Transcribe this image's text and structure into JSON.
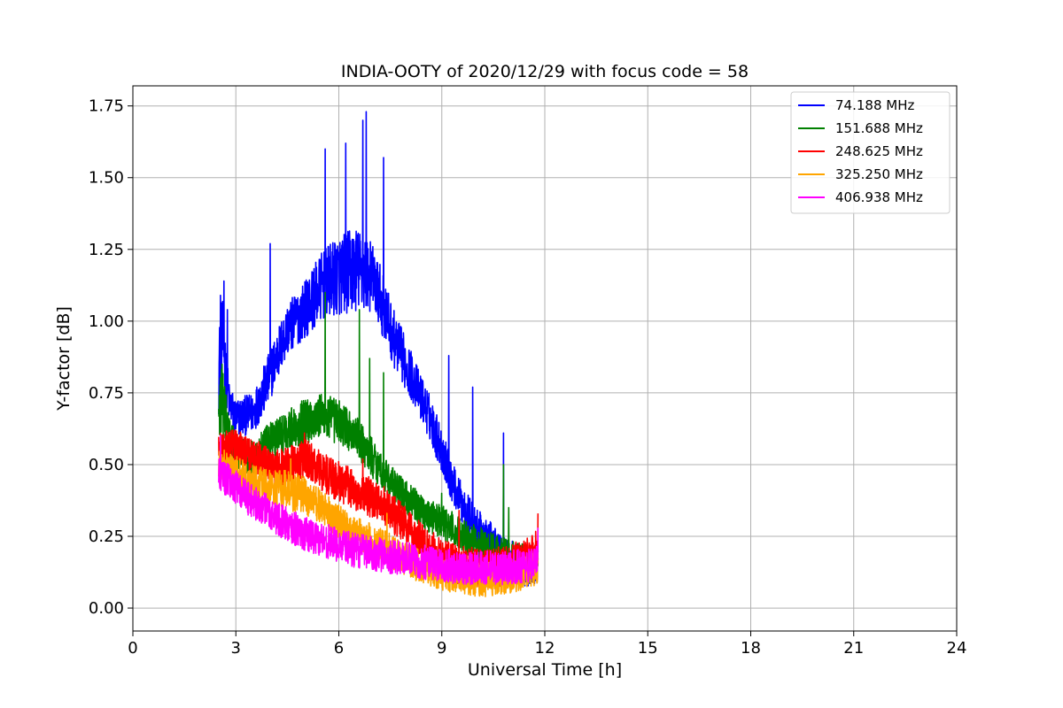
{
  "chart_data": {
    "type": "line",
    "title": "INDIA-OOTY of 2020/12/29 with focus code = 58",
    "xlabel": "Universal Time [h]",
    "ylabel": "Y-factor [dB]",
    "xlim": [
      0,
      24
    ],
    "ylim": [
      -0.08,
      1.82
    ],
    "xticks": [
      0,
      3,
      6,
      9,
      12,
      15,
      18,
      21,
      24
    ],
    "yticks": [
      0.0,
      0.25,
      0.5,
      0.75,
      1.0,
      1.25,
      1.5,
      1.75
    ],
    "ytick_labels": [
      "0.00",
      "0.25",
      "0.50",
      "0.75",
      "1.00",
      "1.25",
      "1.50",
      "1.75"
    ],
    "grid": true,
    "legend_position": "top-right",
    "series": [
      {
        "name": " 74.188 MHz",
        "color": "#0000ff",
        "x": [
          2.5,
          2.6,
          2.8,
          3.0,
          3.5,
          3.9,
          4.2,
          4.5,
          5.0,
          5.5,
          6.0,
          6.5,
          7.0,
          7.3,
          7.6,
          8.0,
          8.3,
          8.7,
          9.0,
          9.3,
          9.6,
          10.0,
          10.5,
          11.0,
          11.4,
          11.8
        ],
        "y": [
          0.82,
          0.95,
          0.72,
          0.66,
          0.68,
          0.78,
          0.88,
          0.97,
          1.04,
          1.12,
          1.16,
          1.18,
          1.15,
          1.05,
          0.94,
          0.84,
          0.76,
          0.65,
          0.55,
          0.44,
          0.36,
          0.28,
          0.22,
          0.17,
          0.14,
          0.16
        ],
        "spread": [
          0.15,
          0.15,
          0.07,
          0.07,
          0.07,
          0.09,
          0.09,
          0.09,
          0.1,
          0.12,
          0.14,
          0.15,
          0.12,
          0.11,
          0.1,
          0.09,
          0.08,
          0.08,
          0.08,
          0.07,
          0.07,
          0.07,
          0.07,
          0.07,
          0.07,
          0.07
        ],
        "peaks": [
          [
            2.55,
            1.09
          ],
          [
            2.65,
            1.14
          ],
          [
            2.75,
            1.04
          ],
          [
            4.0,
            1.27
          ],
          [
            5.6,
            1.6
          ],
          [
            6.2,
            1.62
          ],
          [
            6.7,
            1.7
          ],
          [
            6.8,
            1.73
          ],
          [
            7.3,
            1.57
          ],
          [
            9.2,
            0.88
          ],
          [
            9.9,
            0.77
          ],
          [
            10.8,
            0.61
          ]
        ]
      },
      {
        "name": "151.688 MHz",
        "color": "#008000",
        "x": [
          2.5,
          2.6,
          2.8,
          3.0,
          3.5,
          4.0,
          4.5,
          5.0,
          5.5,
          6.0,
          6.5,
          7.0,
          7.5,
          8.0,
          8.5,
          9.0,
          9.5,
          10.0,
          10.5,
          11.0,
          11.5,
          11.8
        ],
        "y": [
          0.64,
          0.72,
          0.6,
          0.55,
          0.52,
          0.58,
          0.62,
          0.65,
          0.67,
          0.65,
          0.6,
          0.52,
          0.44,
          0.38,
          0.33,
          0.3,
          0.26,
          0.23,
          0.2,
          0.18,
          0.16,
          0.15
        ],
        "spread": [
          0.14,
          0.14,
          0.07,
          0.06,
          0.06,
          0.07,
          0.07,
          0.08,
          0.08,
          0.08,
          0.07,
          0.07,
          0.06,
          0.06,
          0.06,
          0.06,
          0.06,
          0.06,
          0.06,
          0.06,
          0.06,
          0.06
        ],
        "peaks": [
          [
            2.6,
            0.85
          ],
          [
            5.6,
            1.1
          ],
          [
            6.6,
            1.04
          ],
          [
            6.9,
            0.87
          ],
          [
            7.3,
            0.82
          ],
          [
            9.0,
            0.4
          ],
          [
            10.8,
            0.5
          ],
          [
            10.95,
            0.35
          ]
        ]
      },
      {
        "name": "248.625 MHz",
        "color": "#ff0000",
        "x": [
          2.5,
          3.0,
          3.5,
          4.0,
          4.5,
          5.0,
          5.5,
          6.0,
          6.5,
          7.0,
          7.5,
          8.0,
          8.5,
          9.0,
          9.5,
          10.0,
          10.5,
          11.0,
          11.5,
          11.8
        ],
        "y": [
          0.55,
          0.57,
          0.53,
          0.5,
          0.49,
          0.52,
          0.48,
          0.44,
          0.41,
          0.38,
          0.34,
          0.28,
          0.22,
          0.17,
          0.15,
          0.14,
          0.14,
          0.15,
          0.18,
          0.21
        ],
        "spread": [
          0.07,
          0.06,
          0.06,
          0.06,
          0.07,
          0.07,
          0.07,
          0.07,
          0.07,
          0.07,
          0.07,
          0.07,
          0.07,
          0.07,
          0.07,
          0.07,
          0.07,
          0.07,
          0.07,
          0.07
        ],
        "peaks": [
          [
            5.0,
            0.61
          ],
          [
            6.7,
            0.52
          ],
          [
            9.5,
            0.34
          ],
          [
            11.8,
            0.33
          ]
        ]
      },
      {
        "name": "325.250 MHz",
        "color": "#ffa500",
        "x": [
          2.5,
          3.0,
          3.5,
          4.0,
          4.5,
          5.0,
          5.5,
          6.0,
          6.5,
          7.0,
          7.5,
          8.0,
          8.5,
          9.0,
          9.5,
          10.0,
          10.5,
          11.0,
          11.5,
          11.8
        ],
        "y": [
          0.5,
          0.47,
          0.44,
          0.42,
          0.41,
          0.39,
          0.35,
          0.3,
          0.26,
          0.23,
          0.2,
          0.17,
          0.14,
          0.12,
          0.11,
          0.1,
          0.1,
          0.11,
          0.13,
          0.14
        ],
        "spread": [
          0.06,
          0.06,
          0.06,
          0.06,
          0.07,
          0.07,
          0.06,
          0.06,
          0.06,
          0.06,
          0.06,
          0.06,
          0.06,
          0.06,
          0.06,
          0.06,
          0.06,
          0.06,
          0.06,
          0.06
        ],
        "peaks": [
          [
            2.55,
            0.6
          ],
          [
            4.6,
            0.52
          ],
          [
            7.4,
            0.33
          ]
        ]
      },
      {
        "name": "406.938 MHz",
        "color": "#ff00ff",
        "x": [
          2.5,
          3.0,
          3.5,
          4.0,
          4.5,
          5.0,
          5.5,
          6.0,
          6.5,
          7.0,
          7.5,
          8.0,
          8.5,
          9.0,
          9.5,
          10.0,
          10.5,
          11.0,
          11.5,
          11.8
        ],
        "y": [
          0.47,
          0.42,
          0.37,
          0.33,
          0.29,
          0.26,
          0.24,
          0.22,
          0.2,
          0.19,
          0.18,
          0.17,
          0.16,
          0.15,
          0.14,
          0.14,
          0.14,
          0.14,
          0.15,
          0.16
        ],
        "spread": [
          0.06,
          0.06,
          0.06,
          0.06,
          0.06,
          0.06,
          0.06,
          0.06,
          0.06,
          0.06,
          0.06,
          0.06,
          0.06,
          0.06,
          0.06,
          0.06,
          0.06,
          0.06,
          0.06,
          0.06
        ],
        "peaks": [
          [
            2.55,
            0.6
          ],
          [
            11.8,
            0.28
          ]
        ]
      }
    ]
  }
}
